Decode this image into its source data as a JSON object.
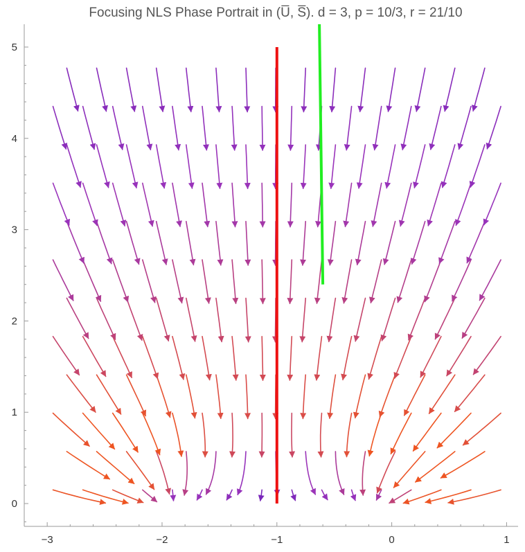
{
  "chart_data": {
    "type": "stream",
    "title": "Focusing NLS Phase Portrait in (U̅, S̅). d = 3, p = 10/3, r = 21/10",
    "xlabel": "",
    "ylabel": "",
    "xlim": [
      -3.2,
      1.1
    ],
    "ylim": [
      -0.25,
      5.25
    ],
    "x_ticks": [
      -3,
      -2,
      -1,
      0,
      1
    ],
    "x_tick_labels": [
      "−3",
      "−2",
      "−1",
      "0",
      "1"
    ],
    "y_ticks": [
      0,
      1,
      2,
      3,
      4,
      5
    ],
    "y_tick_labels": [
      "0",
      "1",
      "2",
      "3",
      "4",
      "5"
    ],
    "grid": false,
    "equilibria": [
      {
        "U": -2.1,
        "S": 0
      },
      {
        "U": 0,
        "S": 0
      }
    ],
    "lines": [
      {
        "name": "red",
        "color": "#ee1111",
        "points": [
          [
            -1,
            0
          ],
          [
            -1,
            5
          ]
        ]
      },
      {
        "name": "green",
        "color": "#22ee22",
        "points": [
          [
            -0.63,
            5.25
          ],
          [
            -0.6,
            2.4
          ]
        ]
      }
    ],
    "colors": {
      "low_speed": "#4411bb",
      "mid_speed": "#9933bb",
      "high_speed": "#ee5522",
      "red_line": "#ee1111",
      "green_line": "#22ee22",
      "axis": "#9a9a9a"
    }
  }
}
